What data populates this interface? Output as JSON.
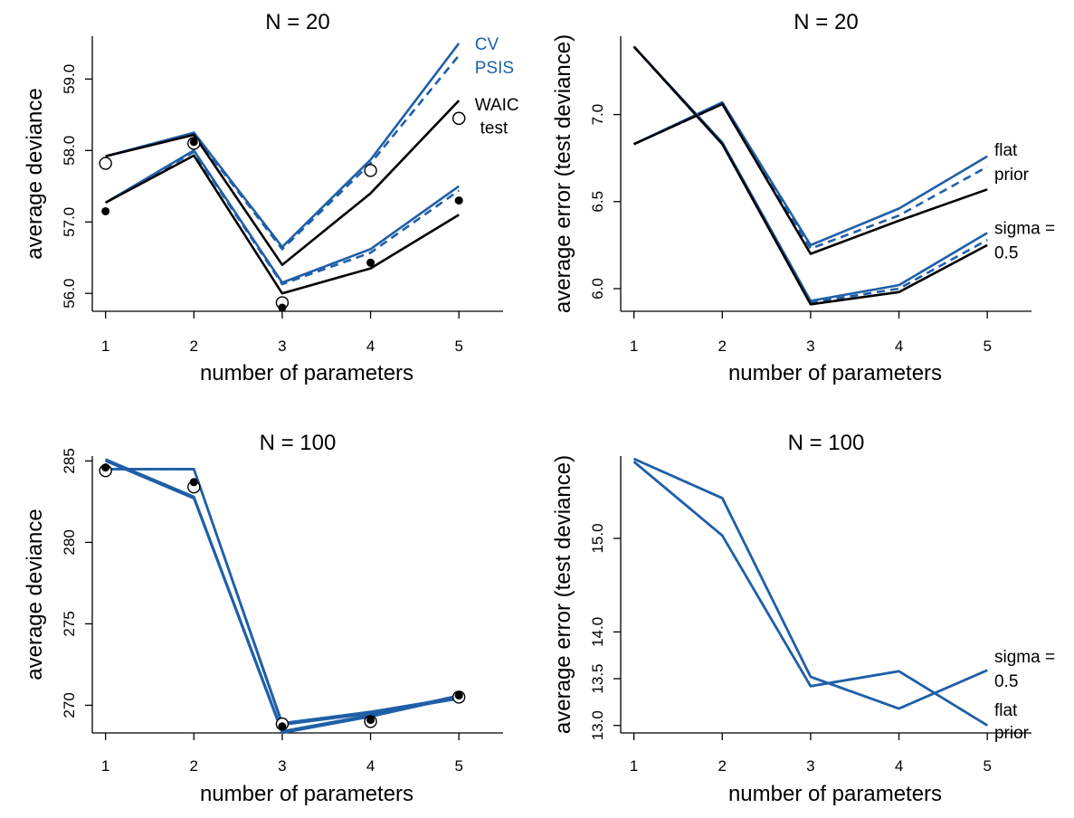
{
  "colors": {
    "blue": "#1f5fa8",
    "black": "#000000"
  },
  "chart_data": [
    {
      "type": "line",
      "title": "N = 20",
      "xlabel": "number of parameters",
      "ylabel": "average deviance",
      "x": [
        1,
        2,
        3,
        4,
        5
      ],
      "xlim": [
        0.85,
        5.5
      ],
      "ylim": [
        55.75,
        59.6
      ],
      "yticks": [
        56,
        57,
        58,
        59
      ],
      "ytick_labels": [
        "56.0",
        "57.0",
        "58.0",
        "59.0"
      ],
      "series": [
        {
          "group": "flat prior",
          "kind": "CV",
          "color": "blue",
          "style": "solid",
          "values": [
            57.92,
            58.25,
            56.65,
            57.87,
            59.5
          ]
        },
        {
          "group": "flat prior",
          "kind": "PSIS",
          "color": "blue",
          "style": "dashed",
          "values": [
            57.92,
            58.23,
            56.62,
            57.82,
            59.33
          ]
        },
        {
          "group": "flat prior",
          "kind": "WAIC",
          "color": "black",
          "style": "solid",
          "values": [
            57.92,
            58.22,
            56.4,
            57.4,
            58.7
          ]
        },
        {
          "group": "sigma = 0.5",
          "kind": "CV",
          "color": "blue",
          "style": "solid",
          "values": [
            57.27,
            58.0,
            56.15,
            56.62,
            57.5
          ]
        },
        {
          "group": "sigma = 0.5",
          "kind": "PSIS",
          "color": "blue",
          "style": "dashed",
          "values": [
            57.27,
            57.98,
            56.13,
            56.57,
            57.44
          ]
        },
        {
          "group": "sigma = 0.5",
          "kind": "WAIC",
          "color": "black",
          "style": "solid",
          "values": [
            57.27,
            57.93,
            56.0,
            56.35,
            57.1
          ]
        }
      ],
      "points": [
        {
          "group": "flat prior",
          "marker": "open",
          "values": [
            57.82,
            58.1,
            55.87,
            57.72,
            58.45
          ]
        },
        {
          "group": "sigma = 0.5",
          "marker": "filled",
          "values": [
            57.15,
            58.12,
            55.8,
            56.43,
            57.3
          ]
        }
      ],
      "annotations": [
        {
          "text": "CV",
          "color": "blue",
          "x": 5.18,
          "y": 59.5
        },
        {
          "text": "PSIS",
          "color": "blue",
          "x": 5.18,
          "y": 59.17
        },
        {
          "text": "WAIC",
          "color": "black",
          "x": 5.18,
          "y": 58.65
        },
        {
          "text": "test",
          "color": "black",
          "x": 5.24,
          "y": 58.33
        }
      ],
      "legend_marker": {
        "marker": "open",
        "x": 5.0,
        "y": 58.45
      }
    },
    {
      "type": "line",
      "title": "N = 20",
      "xlabel": "number of parameters",
      "ylabel": "average error (test deviance)",
      "x": [
        1,
        2,
        3,
        4,
        5
      ],
      "xlim": [
        0.85,
        5.5
      ],
      "ylim": [
        5.87,
        7.45
      ],
      "yticks": [
        6.0,
        6.5,
        7.0
      ],
      "ytick_labels": [
        "6.0",
        "6.5",
        "7.0"
      ],
      "series": [
        {
          "group": "flat prior",
          "kind": "CV",
          "color": "blue",
          "style": "solid",
          "values": [
            6.83,
            7.07,
            6.25,
            6.46,
            6.76
          ]
        },
        {
          "group": "flat prior",
          "kind": "PSIS",
          "color": "blue",
          "style": "dashed",
          "values": [
            6.83,
            7.06,
            6.23,
            6.42,
            6.7
          ]
        },
        {
          "group": "flat prior",
          "kind": "WAIC",
          "color": "black",
          "style": "solid",
          "values": [
            6.83,
            7.06,
            6.2,
            6.39,
            6.57
          ]
        },
        {
          "group": "sigma = 0.5",
          "kind": "CV",
          "color": "blue",
          "style": "solid",
          "values": [
            7.39,
            6.84,
            5.93,
            6.02,
            6.32
          ]
        },
        {
          "group": "sigma = 0.5",
          "kind": "PSIS",
          "color": "blue",
          "style": "dashed",
          "values": [
            7.39,
            6.83,
            5.92,
            6.0,
            6.28
          ]
        },
        {
          "group": "sigma = 0.5",
          "kind": "WAIC",
          "color": "black",
          "style": "solid",
          "values": [
            7.39,
            6.83,
            5.91,
            5.98,
            6.25
          ]
        }
      ],
      "points": [],
      "annotations": [
        {
          "text": "flat",
          "color": "black",
          "x": 5.08,
          "y": 6.8
        },
        {
          "text": "prior",
          "color": "black",
          "x": 5.08,
          "y": 6.66
        },
        {
          "text": "sigma =",
          "color": "black",
          "x": 5.08,
          "y": 6.35
        },
        {
          "text": "0.5",
          "color": "black",
          "x": 5.08,
          "y": 6.21
        }
      ]
    },
    {
      "type": "line",
      "title": "N = 100",
      "xlabel": "number of parameters",
      "ylabel": "average deviance",
      "x": [
        1,
        2,
        3,
        4,
        5
      ],
      "xlim": [
        0.85,
        5.5
      ],
      "ylim": [
        268.3,
        285.3
      ],
      "yticks": [
        270,
        275,
        280,
        285
      ],
      "ytick_labels": [
        "270",
        "275",
        "280",
        "285"
      ],
      "series": [
        {
          "group": "flat prior",
          "kind": "CV",
          "color": "blue",
          "style": "solid",
          "values": [
            284.5,
            284.5,
            268.9,
            269.6,
            270.5
          ]
        },
        {
          "group": "flat prior",
          "kind": "PSIS",
          "color": "blue",
          "style": "dashed",
          "values": [
            284.5,
            284.5,
            268.85,
            269.55,
            270.45
          ]
        },
        {
          "group": "flat prior",
          "kind": "WAIC",
          "color": "blue",
          "style": "solid",
          "values": [
            284.5,
            284.5,
            268.8,
            269.5,
            270.4
          ]
        },
        {
          "group": "sigma = 0.5",
          "kind": "CV",
          "color": "blue",
          "style": "solid",
          "values": [
            285.1,
            282.8,
            268.4,
            269.4,
            270.6
          ]
        },
        {
          "group": "sigma = 0.5",
          "kind": "PSIS",
          "color": "blue",
          "style": "dashed",
          "values": [
            285.05,
            282.75,
            268.35,
            269.35,
            270.55
          ]
        },
        {
          "group": "sigma = 0.5",
          "kind": "WAIC",
          "color": "blue",
          "style": "solid",
          "values": [
            285.0,
            282.7,
            268.3,
            269.3,
            270.5
          ]
        }
      ],
      "points": [
        {
          "group": "flat prior",
          "marker": "open",
          "values": [
            284.4,
            283.4,
            268.85,
            269.0,
            270.5
          ]
        },
        {
          "group": "sigma = 0.5",
          "marker": "filled",
          "values": [
            284.6,
            283.7,
            268.7,
            269.1,
            270.6
          ]
        }
      ],
      "annotations": []
    },
    {
      "type": "line",
      "title": "N = 100",
      "xlabel": "number of parameters",
      "ylabel": "average error (test deviance)",
      "x": [
        1,
        2,
        3,
        4,
        5
      ],
      "xlim": [
        0.85,
        5.5
      ],
      "ylim": [
        12.92,
        15.88
      ],
      "yticks": [
        13.0,
        13.5,
        14.0,
        15.0
      ],
      "ytick_labels": [
        "13.0",
        "13.5",
        "14.0",
        "15.0"
      ],
      "series": [
        {
          "group": "flat prior",
          "kind": "CV",
          "color": "blue",
          "style": "solid",
          "values": [
            15.85,
            15.43,
            13.52,
            13.18,
            13.59
          ]
        },
        {
          "group": "flat prior",
          "kind": "PSIS",
          "color": "blue",
          "style": "dashed",
          "values": [
            15.85,
            15.43,
            13.52,
            13.18,
            13.59
          ]
        },
        {
          "group": "flat prior",
          "kind": "WAIC",
          "color": "blue",
          "style": "solid",
          "values": [
            15.85,
            15.43,
            13.52,
            13.18,
            13.59
          ]
        },
        {
          "group": "sigma = 0.5",
          "kind": "CV",
          "color": "blue",
          "style": "solid",
          "values": [
            15.82,
            15.03,
            13.42,
            13.58,
            13.0
          ]
        },
        {
          "group": "sigma = 0.5",
          "kind": "PSIS",
          "color": "blue",
          "style": "dashed",
          "values": [
            15.82,
            15.03,
            13.42,
            13.58,
            13.0
          ]
        },
        {
          "group": "sigma = 0.5",
          "kind": "WAIC",
          "color": "blue",
          "style": "solid",
          "values": [
            15.82,
            15.03,
            13.42,
            13.58,
            13.0
          ]
        }
      ],
      "points": [],
      "annotations": [
        {
          "text": "sigma =",
          "color": "black",
          "x": 5.08,
          "y": 13.74
        },
        {
          "text": "0.5",
          "color": "black",
          "x": 5.08,
          "y": 13.48
        },
        {
          "text": "flat",
          "color": "black",
          "x": 5.08,
          "y": 13.17
        },
        {
          "text": "prior",
          "color": "black",
          "x": 5.08,
          "y": 12.93
        }
      ]
    }
  ]
}
